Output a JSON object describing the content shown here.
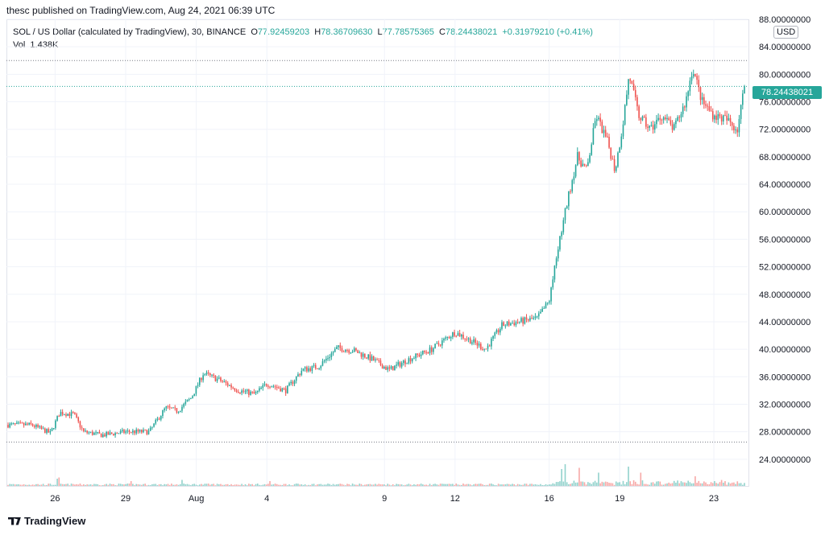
{
  "publisher": "thesc published on TradingView.com, Aug 24, 2021 06:39 UTC",
  "legend": {
    "symbol": "SOL / US Dollar (calculated by TradingView), 30, BINANCE",
    "o_label": "O",
    "o_value": "77.92459203",
    "h_label": "H",
    "h_value": "78.36709630",
    "l_label": "L",
    "l_value": "77.78575365",
    "c_label": "C",
    "c_value": "78.24438021",
    "change": "+0.31979210 (+0.41%)",
    "vol_label": "Vol",
    "vol_value": "1.438K"
  },
  "currency": "USD",
  "current_price_label": "78.24438021",
  "logo_text": "TradingView",
  "colors": {
    "up": "#26a69a",
    "down": "#ef5350",
    "grid": "#f0f3fa",
    "text": "#131722"
  },
  "chart_data": {
    "type": "candlestick",
    "title": "SOL / US Dollar (calculated by TradingView), 30, BINANCE",
    "ylim": [
      20,
      88
    ],
    "y_ticks": [
      "24.00000000",
      "28.00000000",
      "32.00000000",
      "36.00000000",
      "40.00000000",
      "44.00000000",
      "48.00000000",
      "52.00000000",
      "56.00000000",
      "60.00000000",
      "64.00000000",
      "68.00000000",
      "72.00000000",
      "76.00000000",
      "80.00000000",
      "84.00000000",
      "88.00000000"
    ],
    "y_tick_values": [
      24,
      28,
      32,
      36,
      40,
      44,
      48,
      52,
      56,
      60,
      64,
      68,
      72,
      76,
      80,
      84,
      88
    ],
    "x_ticks": [
      "26",
      "29",
      "Aug",
      "4",
      "9",
      "12",
      "16",
      "19",
      "23"
    ],
    "x_tick_days": [
      2,
      5,
      8,
      11,
      16,
      19,
      23,
      26,
      30
    ],
    "x_range_days": [
      0,
      31.3
    ],
    "reference_levels": [
      82,
      26.5
    ],
    "current_price": 78.24,
    "price_keypoints": [
      [
        0,
        29.0
      ],
      [
        1.0,
        29.0
      ],
      [
        1.8,
        27.8
      ],
      [
        2.2,
        30.8
      ],
      [
        2.8,
        30.5
      ],
      [
        3.2,
        28.0
      ],
      [
        4.0,
        27.5
      ],
      [
        5.0,
        28.0
      ],
      [
        6.0,
        28.0
      ],
      [
        6.7,
        31.5
      ],
      [
        7.2,
        31.0
      ],
      [
        7.8,
        33.0
      ],
      [
        8.3,
        36.5
      ],
      [
        9.0,
        35.5
      ],
      [
        9.8,
        34.0
      ],
      [
        10.5,
        33.5
      ],
      [
        11.0,
        35.0
      ],
      [
        11.8,
        34.0
      ],
      [
        12.5,
        37.0
      ],
      [
        13.2,
        37.5
      ],
      [
        14.0,
        40.2
      ],
      [
        14.7,
        39.8
      ],
      [
        15.5,
        38.5
      ],
      [
        16.2,
        37.0
      ],
      [
        17.0,
        38.5
      ],
      [
        18.0,
        40.0
      ],
      [
        19.0,
        42.5
      ],
      [
        19.8,
        41.0
      ],
      [
        20.3,
        40.0
      ],
      [
        21.0,
        43.5
      ],
      [
        21.7,
        44.0
      ],
      [
        22.5,
        44.5
      ],
      [
        23.0,
        47.0
      ],
      [
        23.4,
        55.0
      ],
      [
        23.8,
        62.0
      ],
      [
        24.2,
        68.0
      ],
      [
        24.6,
        66.0
      ],
      [
        25.0,
        74.0
      ],
      [
        25.5,
        70.0
      ],
      [
        25.8,
        66.0
      ],
      [
        26.1,
        72.0
      ],
      [
        26.4,
        80.0
      ],
      [
        26.8,
        74.0
      ],
      [
        27.3,
        72.0
      ],
      [
        27.8,
        74.0
      ],
      [
        28.3,
        72.0
      ],
      [
        28.8,
        76.0
      ],
      [
        29.1,
        81.0
      ],
      [
        29.5,
        76.0
      ],
      [
        30.0,
        74.0
      ],
      [
        30.5,
        73.5
      ],
      [
        31.0,
        72.0
      ],
      [
        31.3,
        78.24
      ]
    ],
    "volume_axis_max": 40,
    "volume_spikes": [
      [
        2.1,
        12
      ],
      [
        2.2,
        14
      ],
      [
        5.2,
        8
      ],
      [
        7.4,
        10
      ],
      [
        11.1,
        8
      ],
      [
        23.5,
        28
      ],
      [
        23.7,
        36
      ],
      [
        24.3,
        30
      ],
      [
        25.1,
        22
      ],
      [
        26.4,
        32
      ],
      [
        26.9,
        22
      ],
      [
        29.2,
        16
      ]
    ]
  }
}
